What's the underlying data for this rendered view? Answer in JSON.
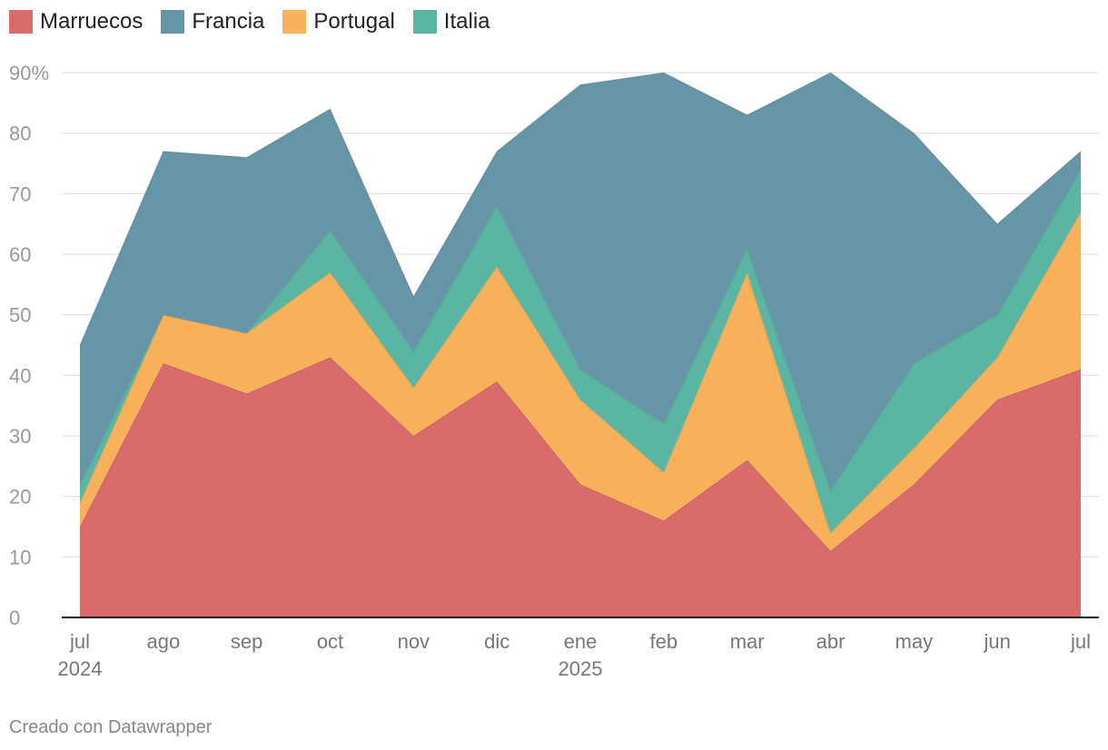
{
  "legend": [
    {
      "label": "Marruecos",
      "color": "#d96b6b"
    },
    {
      "label": "Francia",
      "color": "#6595a7"
    },
    {
      "label": "Portugal",
      "color": "#f8b15a"
    },
    {
      "label": "Italia",
      "color": "#5ab5a2"
    }
  ],
  "credit": "Creado con Datawrapper",
  "chart_data": {
    "type": "area",
    "stacked": true,
    "categories": [
      "jul",
      "ago",
      "sep",
      "oct",
      "nov",
      "dic",
      "ene",
      "feb",
      "mar",
      "abr",
      "may",
      "jun",
      "jul"
    ],
    "year_labels": {
      "0": "2024",
      "6": "2025"
    },
    "series": [
      {
        "name": "Marruecos",
        "color": "#d96b6b",
        "values": [
          15,
          42,
          37,
          43,
          30,
          39,
          22,
          16,
          26,
          11,
          22,
          36,
          41
        ]
      },
      {
        "name": "Portugal",
        "color": "#f8b15a",
        "values": [
          4,
          8,
          10,
          14,
          8,
          19,
          14,
          8,
          31,
          3,
          6,
          7,
          26
        ]
      },
      {
        "name": "Italia",
        "color": "#5ab5a2",
        "values": [
          3,
          0,
          0,
          7,
          6,
          10,
          5,
          8,
          4,
          7,
          14,
          7,
          7
        ]
      },
      {
        "name": "Francia",
        "color": "#6595a7",
        "values": [
          23,
          27,
          29,
          20,
          9,
          9,
          47,
          58,
          22,
          69,
          38,
          15,
          3
        ]
      }
    ],
    "ylim": [
      0,
      90
    ],
    "yticks": [
      0,
      10,
      20,
      30,
      40,
      50,
      60,
      70,
      80,
      90
    ],
    "ytick_labels": [
      "0",
      "10",
      "20",
      "30",
      "40",
      "50",
      "60",
      "70",
      "80",
      "90%"
    ],
    "grid": true,
    "legend_position": "top-left"
  }
}
